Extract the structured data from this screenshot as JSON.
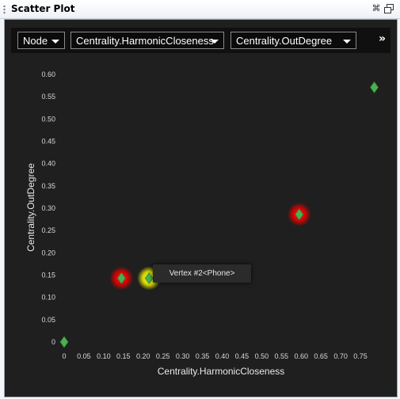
{
  "window": {
    "title": "Scatter Plot",
    "icons": [
      "pin-icon",
      "restore-window-icon"
    ]
  },
  "toolbar": {
    "type_select": "Node",
    "x_select": "Centrality.HarmonicCloseness",
    "y_select": "Centrality.OutDegree",
    "more_label": "»"
  },
  "tooltip": {
    "text": "Vertex #2<Phone>"
  },
  "colors": {
    "background": "#1f1f1f",
    "point": "#4caf50",
    "highlight_red": "#ff1a1a",
    "highlight_yellow": "#e6e600"
  },
  "chart_data": {
    "type": "scatter",
    "xlabel": "Centrality.HarmonicCloseness",
    "ylabel": "Centrality.OutDegree",
    "xlim": [
      0,
      0.8
    ],
    "ylim": [
      0,
      0.6
    ],
    "x_ticks": [
      "0",
      "0.05",
      "0.10",
      "0.15",
      "0.20",
      "0.25",
      "0.30",
      "0.35",
      "0.40",
      "0.45",
      "0.50",
      "0.55",
      "0.60",
      "0.65",
      "0.70",
      "0.75"
    ],
    "y_ticks": [
      "0",
      "0.05",
      "0.10",
      "0.15",
      "0.20",
      "0.25",
      "0.30",
      "0.35",
      "0.40",
      "0.45",
      "0.50",
      "0.55",
      "0.60"
    ],
    "x_tick_values": [
      0,
      0.05,
      0.1,
      0.15,
      0.2,
      0.25,
      0.3,
      0.35,
      0.4,
      0.45,
      0.5,
      0.55,
      0.6,
      0.65,
      0.7,
      0.75
    ],
    "y_tick_values": [
      0,
      0.05,
      0.1,
      0.15,
      0.2,
      0.25,
      0.3,
      0.35,
      0.4,
      0.45,
      0.5,
      0.55,
      0.6
    ],
    "points": [
      {
        "x": 0.0,
        "y": 0.0,
        "highlight": "none"
      },
      {
        "x": 0.145,
        "y": 0.143,
        "highlight": "red"
      },
      {
        "x": 0.215,
        "y": 0.143,
        "highlight": "yellow"
      },
      {
        "x": 0.595,
        "y": 0.286,
        "highlight": "red"
      },
      {
        "x": 0.785,
        "y": 0.571,
        "highlight": "none"
      }
    ],
    "grid": false
  }
}
